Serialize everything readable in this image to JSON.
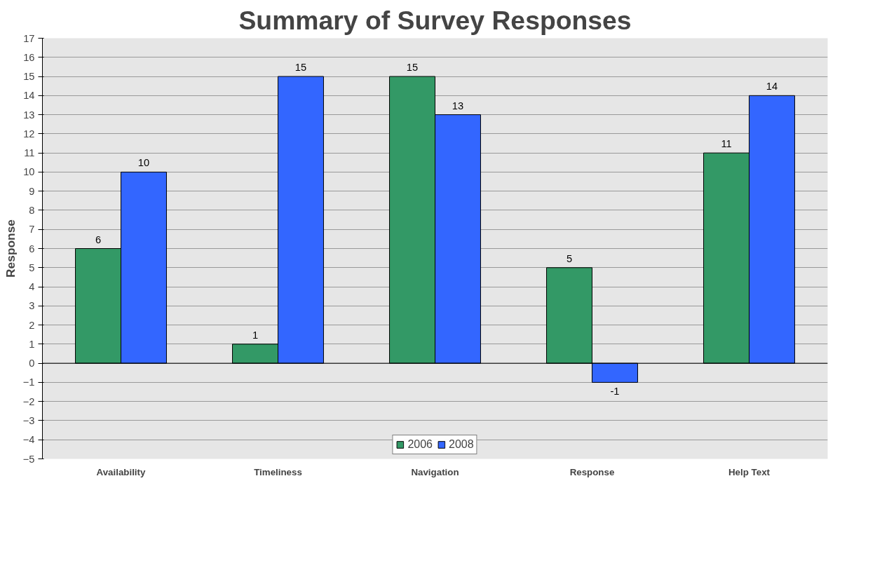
{
  "chart_data": {
    "type": "bar",
    "title": "Summary of Survey Responses",
    "ylabel": "Response",
    "categories": [
      "Availability",
      "Timeliness",
      "Navigation",
      "Response",
      "Help Text"
    ],
    "series": [
      {
        "name": "2006",
        "color": "#339966",
        "values": [
          6,
          1,
          15,
          5,
          11
        ]
      },
      {
        "name": "2008",
        "color": "#3366ff",
        "values": [
          10,
          15,
          13,
          -1,
          14
        ]
      }
    ],
    "ylim": [
      -5,
      17
    ],
    "yticks": [
      -5,
      -4,
      -3,
      -2,
      -1,
      0,
      1,
      2,
      3,
      4,
      5,
      6,
      7,
      8,
      9,
      10,
      11,
      12,
      13,
      14,
      15,
      16,
      17
    ],
    "grid": "y",
    "legend": "bottom",
    "data_labels": true
  }
}
